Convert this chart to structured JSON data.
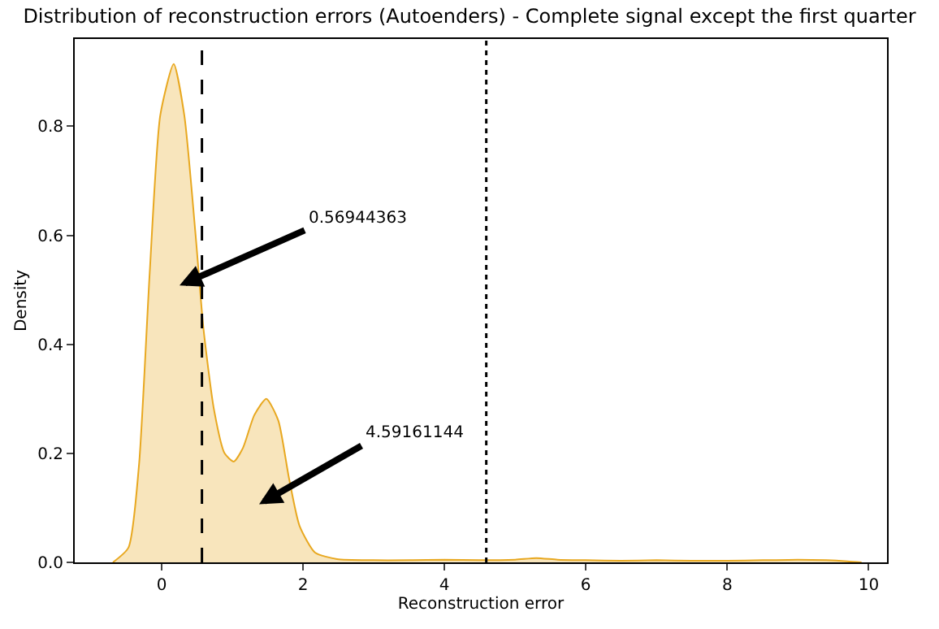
{
  "chart_data": {
    "type": "area",
    "title": "Distribution of reconstruction errors (Autoenders) - Complete signal except the first quarter",
    "xlabel": "Reconstruction error",
    "ylabel": "Density",
    "series": [
      {
        "color": "#e8a820",
        "x": [
          -0.69,
          -0.47,
          -0.32,
          -0.17,
          -0.02,
          0.17,
          0.32,
          0.48,
          0.59,
          0.74,
          0.89,
          1.02,
          1.15,
          1.31,
          1.48,
          1.65,
          1.8,
          1.95,
          2.17,
          2.48,
          3.0,
          3.5,
          4.0,
          4.5,
          5.0,
          5.3,
          5.6,
          6.0,
          6.5,
          7.0,
          7.5,
          8.0,
          8.5,
          9.0,
          9.4,
          9.7,
          9.9
        ],
        "values": [
          0,
          0.027,
          0.18,
          0.53,
          0.82,
          0.914,
          0.82,
          0.6,
          0.43,
          0.28,
          0.2,
          0.185,
          0.21,
          0.27,
          0.3,
          0.26,
          0.155,
          0.067,
          0.018,
          0.006,
          0.004,
          0.004,
          0.005,
          0.004,
          0.005,
          0.008,
          0.005,
          0.004,
          0.003,
          0.004,
          0.003,
          0.003,
          0.004,
          0.005,
          0.004,
          0.002,
          0
        ]
      }
    ],
    "xlim": [
      -1.23,
      10.26
    ],
    "xticks": [
      0,
      2,
      4,
      6,
      8,
      10
    ],
    "ylim": [
      0,
      0.96
    ],
    "yticks": [
      {
        "value": 0,
        "label": "0.0"
      },
      {
        "value": 0.2,
        "label": "0.2"
      },
      {
        "value": 0.4,
        "label": "0.4"
      },
      {
        "value": 0.6,
        "label": "0.6"
      },
      {
        "value": 0.8,
        "label": "0.8"
      }
    ],
    "ref_lines": [
      {
        "axis": "x",
        "value": 0.56944363,
        "color": "#000000",
        "line_style": "dashed"
      },
      {
        "axis": "x",
        "value": 4.59161144,
        "color": "#000000",
        "line_style": "dotted"
      }
    ],
    "annotations": [
      "0.56944363",
      "4.59161144"
    ]
  }
}
